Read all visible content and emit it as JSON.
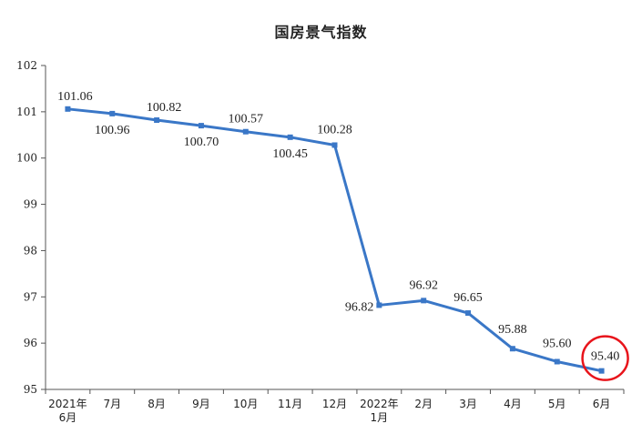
{
  "chart_data": {
    "type": "line",
    "title": "国房景气指数",
    "categories": [
      [
        "2021年",
        "6月"
      ],
      [
        "7月"
      ],
      [
        "8月"
      ],
      [
        "9月"
      ],
      [
        "10月"
      ],
      [
        "11月"
      ],
      [
        "12月"
      ],
      [
        "2022年",
        "1月"
      ],
      [
        "2月"
      ],
      [
        "3月"
      ],
      [
        "4月"
      ],
      [
        "5月"
      ],
      [
        "6月"
      ]
    ],
    "series": [
      {
        "values": [
          101.06,
          100.96,
          100.82,
          100.7,
          100.57,
          100.45,
          100.28,
          96.82,
          96.92,
          96.65,
          95.88,
          95.6,
          95.4
        ],
        "labels": [
          "101.06",
          "100.96",
          "100.82",
          "100.70",
          "100.57",
          "100.45",
          "100.28",
          "96.82",
          "96.92",
          "96.65",
          "95.88",
          "95.60",
          "95.40"
        ],
        "color": "#3a77c7"
      }
    ],
    "ylim": [
      95,
      102
    ],
    "yticks": [
      95,
      96,
      97,
      98,
      99,
      100,
      101,
      102
    ],
    "highlight": {
      "index": 12,
      "color": "#e8141b"
    },
    "xlabel": "",
    "ylabel": ""
  }
}
